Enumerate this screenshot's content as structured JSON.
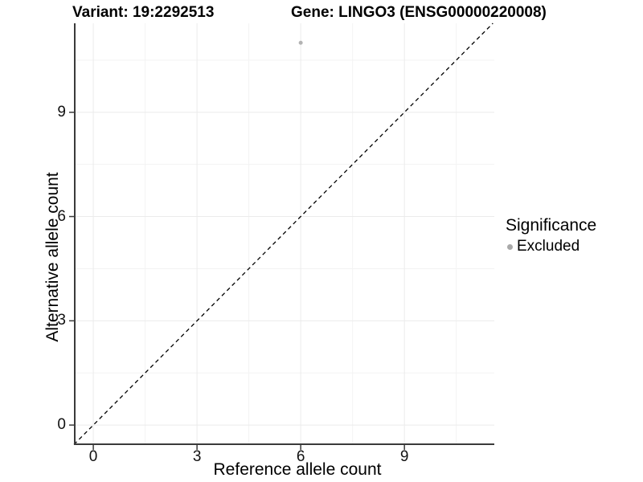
{
  "titles": {
    "variant": "Variant: 19:2292513",
    "gene": "Gene: LINGO3 (ENSG00000220008)"
  },
  "chart_data": {
    "type": "scatter",
    "xlabel": "Reference allele count",
    "ylabel": "Alternative allele count",
    "xlim": [
      -0.56,
      11.6
    ],
    "ylim": [
      -0.575,
      11.56
    ],
    "x_ticks": [
      0,
      3,
      6,
      9
    ],
    "y_ticks": [
      0,
      3,
      6,
      9
    ],
    "x_minor": [
      1.5,
      4.5,
      7.5,
      10.5
    ],
    "y_minor": [
      1.5,
      4.5,
      7.5,
      10.5
    ],
    "grid": "major+minor",
    "series": [
      {
        "name": "Excluded",
        "color": "#b3b3b3",
        "points": [
          {
            "x": 6,
            "y": 11
          }
        ]
      }
    ],
    "reference_line": {
      "slope": 1,
      "intercept": 0,
      "linetype": "dashed",
      "color": "#000000"
    },
    "legend": {
      "position": "right",
      "title": "Significance",
      "entries": [
        {
          "label": "Excluded",
          "color": "#a9a9a9"
        }
      ]
    }
  },
  "style": {
    "axis_line_color": "#3a3a3a",
    "major_grid_color": "#ebebeb",
    "minor_grid_color": "#f3f3f3",
    "background": "#ffffff",
    "point_radius": 2.5
  }
}
